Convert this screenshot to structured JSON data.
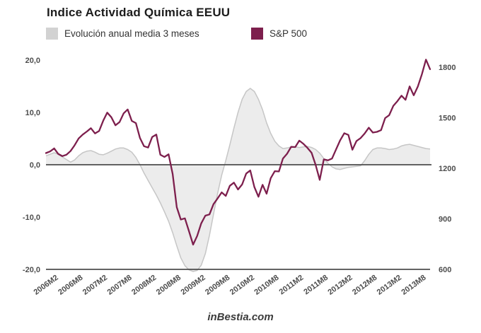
{
  "header": {
    "title": "Indice Actividad Química EEUU"
  },
  "legend": [
    {
      "label": "Evolución anual media 3 meses",
      "swatch_color": "#d2d2d2"
    },
    {
      "label": "S&P 500",
      "swatch_color": "#7d1f4d"
    }
  ],
  "footer": {
    "watermark": "inBestia.com"
  },
  "chart_data": {
    "type": "line",
    "title": "Indice Actividad Química EEUU",
    "x_start": "2006M2",
    "x_frequency": "monthly",
    "x_labels_rotated": true,
    "grid": "off",
    "legend_position": "top",
    "x_tick_labels": [
      "2006M2",
      "2006M8",
      "2007M2",
      "2007M8",
      "2008M2",
      "2008M8",
      "2009M2",
      "2009M8",
      "2010M2",
      "2010M8",
      "2011M2",
      "2011M8",
      "2012M2",
      "2012M8",
      "2013M2",
      "2013M8"
    ],
    "left_axis": {
      "series": "Evolución anual media 3 meses",
      "ticks": [
        "20,0",
        "10,0",
        "0,0",
        "-10,0",
        "-20,0"
      ],
      "min": -20,
      "max": 20,
      "tick_color": "#4d4d4d"
    },
    "right_axis": {
      "series": "S&P 500",
      "ticks": [
        "1800",
        "1500",
        "1200",
        "900",
        "600"
      ],
      "min": 600,
      "max": 1800,
      "tick_color": "#4d4d4d"
    },
    "axis_line_color": "#4d4d4d",
    "series": [
      {
        "name": "Evolución anual media 3 meses",
        "type": "area",
        "axis": "left",
        "fill": "#ececec",
        "stroke": "#c6c6c6",
        "values": [
          1.7,
          2.0,
          2.3,
          2.0,
          1.5,
          1.0,
          0.5,
          0.9,
          1.7,
          2.3,
          2.6,
          2.7,
          2.4,
          2.0,
          1.9,
          2.2,
          2.6,
          3.0,
          3.2,
          3.2,
          2.9,
          2.4,
          1.4,
          0.0,
          -1.6,
          -3.0,
          -4.4,
          -5.8,
          -7.3,
          -9.0,
          -10.8,
          -13.0,
          -15.5,
          -17.8,
          -19.3,
          -20.1,
          -20.4,
          -20.2,
          -19.2,
          -17.0,
          -13.5,
          -9.5,
          -5.5,
          -2.0,
          0.8,
          3.8,
          7.0,
          10.0,
          12.5,
          14.0,
          14.6,
          14.0,
          12.5,
          10.5,
          8.0,
          6.0,
          4.5,
          3.6,
          3.1,
          3.2,
          3.4,
          3.4,
          3.3,
          3.4,
          3.5,
          3.3,
          2.9,
          2.2,
          1.2,
          0.3,
          -0.4,
          -0.8,
          -0.9,
          -0.7,
          -0.5,
          -0.4,
          -0.3,
          -0.2,
          0.8,
          2.0,
          2.9,
          3.2,
          3.2,
          3.1,
          2.9,
          3.0,
          3.2,
          3.6,
          3.8,
          3.9,
          3.7,
          3.5,
          3.3,
          3.1,
          3.0
        ]
      },
      {
        "name": "S&P 500",
        "type": "line",
        "axis": "right",
        "stroke": "#7d1f4d",
        "values": [
          1290,
          1300,
          1318,
          1285,
          1272,
          1280,
          1302,
          1336,
          1377,
          1400,
          1418,
          1438,
          1407,
          1421,
          1482,
          1530,
          1503,
          1455,
          1474,
          1526,
          1549,
          1481,
          1468,
          1379,
          1331,
          1323,
          1386,
          1400,
          1280,
          1267,
          1283,
          1166,
          969,
          896,
          903,
          826,
          747,
          798,
          873,
          919,
          926,
          987,
          1021,
          1057,
          1036,
          1096,
          1115,
          1074,
          1104,
          1169,
          1187,
          1089,
          1031,
          1102,
          1049,
          1141,
          1183,
          1181,
          1258,
          1286,
          1327,
          1326,
          1364,
          1345,
          1321,
          1292,
          1219,
          1131,
          1253,
          1247,
          1258,
          1312,
          1366,
          1408,
          1398,
          1310,
          1362,
          1379,
          1407,
          1441,
          1412,
          1416,
          1426,
          1498,
          1515,
          1570,
          1598,
          1631,
          1606,
          1686,
          1633,
          1685,
          1757,
          1845,
          1788
        ]
      }
    ]
  }
}
